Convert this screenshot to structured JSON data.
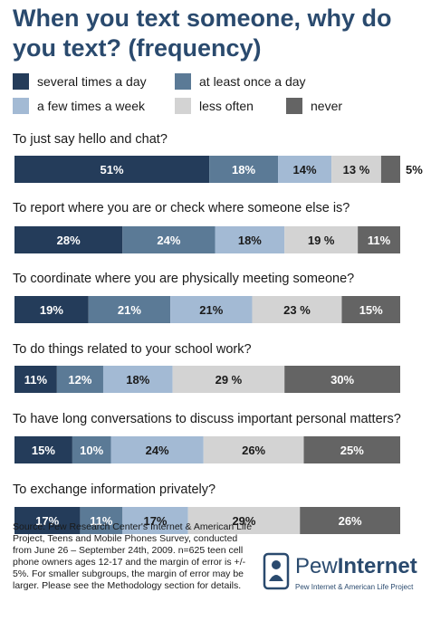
{
  "chart_data": {
    "type": "bar",
    "orientation": "horizontal",
    "stacked": true,
    "title": "When you text someone, why do you text? (frequency)",
    "legend": [
      {
        "label": "several times a day",
        "color": "#243c5a"
      },
      {
        "label": "at least once a day",
        "color": "#5b7a96"
      },
      {
        "label": "a few times a week",
        "color": "#a3bad4"
      },
      {
        "label": "less often",
        "color": "#d3d3d3"
      },
      {
        "label": "never",
        "color": "#646464"
      }
    ],
    "categories": [
      "To just say hello and chat?",
      "To report where you are or check where someone else is?",
      "To coordinate where you are physically meeting someone?",
      "To do things related to your school work?",
      "To have long conversations to discuss important personal matters?",
      "To exchange information privately?"
    ],
    "series": [
      {
        "name": "several times a day",
        "values": [
          51,
          28,
          19,
          11,
          15,
          17
        ]
      },
      {
        "name": "at least once a day",
        "values": [
          18,
          24,
          21,
          12,
          10,
          11
        ]
      },
      {
        "name": "a few times a week",
        "values": [
          14,
          18,
          21,
          18,
          24,
          17
        ]
      },
      {
        "name": "less often",
        "values": [
          13,
          19,
          23,
          29,
          26,
          29
        ]
      },
      {
        "name": "never",
        "values": [
          5,
          11,
          15,
          30,
          25,
          26
        ]
      }
    ],
    "data_labels": [
      [
        "51%",
        "18%",
        "14%",
        "13 %",
        "5%"
      ],
      [
        "28%",
        "24%",
        "18%",
        "19 %",
        "11%"
      ],
      [
        "19%",
        "21%",
        "21%",
        "23 %",
        "15%"
      ],
      [
        "11%",
        "12%",
        "18%",
        "29 %",
        "30%"
      ],
      [
        "15%",
        "10%",
        "24%",
        "26%",
        "25%"
      ],
      [
        "17%",
        "11%",
        "17%",
        "29%",
        "26%"
      ]
    ]
  },
  "source_text": "Source: Pew Research Center's Internet & American Life Project, Teens and Mobile Phones Survey, conducted from June 26 – September 24th, 2009. n=625 teen cell phone owners ages 12-17 and the margin of error is +/- 5%. For smaller subgroups, the margin of error may be larger. Please see the Methodology section for details.",
  "logo": {
    "word1": "Pew",
    "word2": "Internet",
    "tagline": "Pew Internet & American Life Project"
  }
}
